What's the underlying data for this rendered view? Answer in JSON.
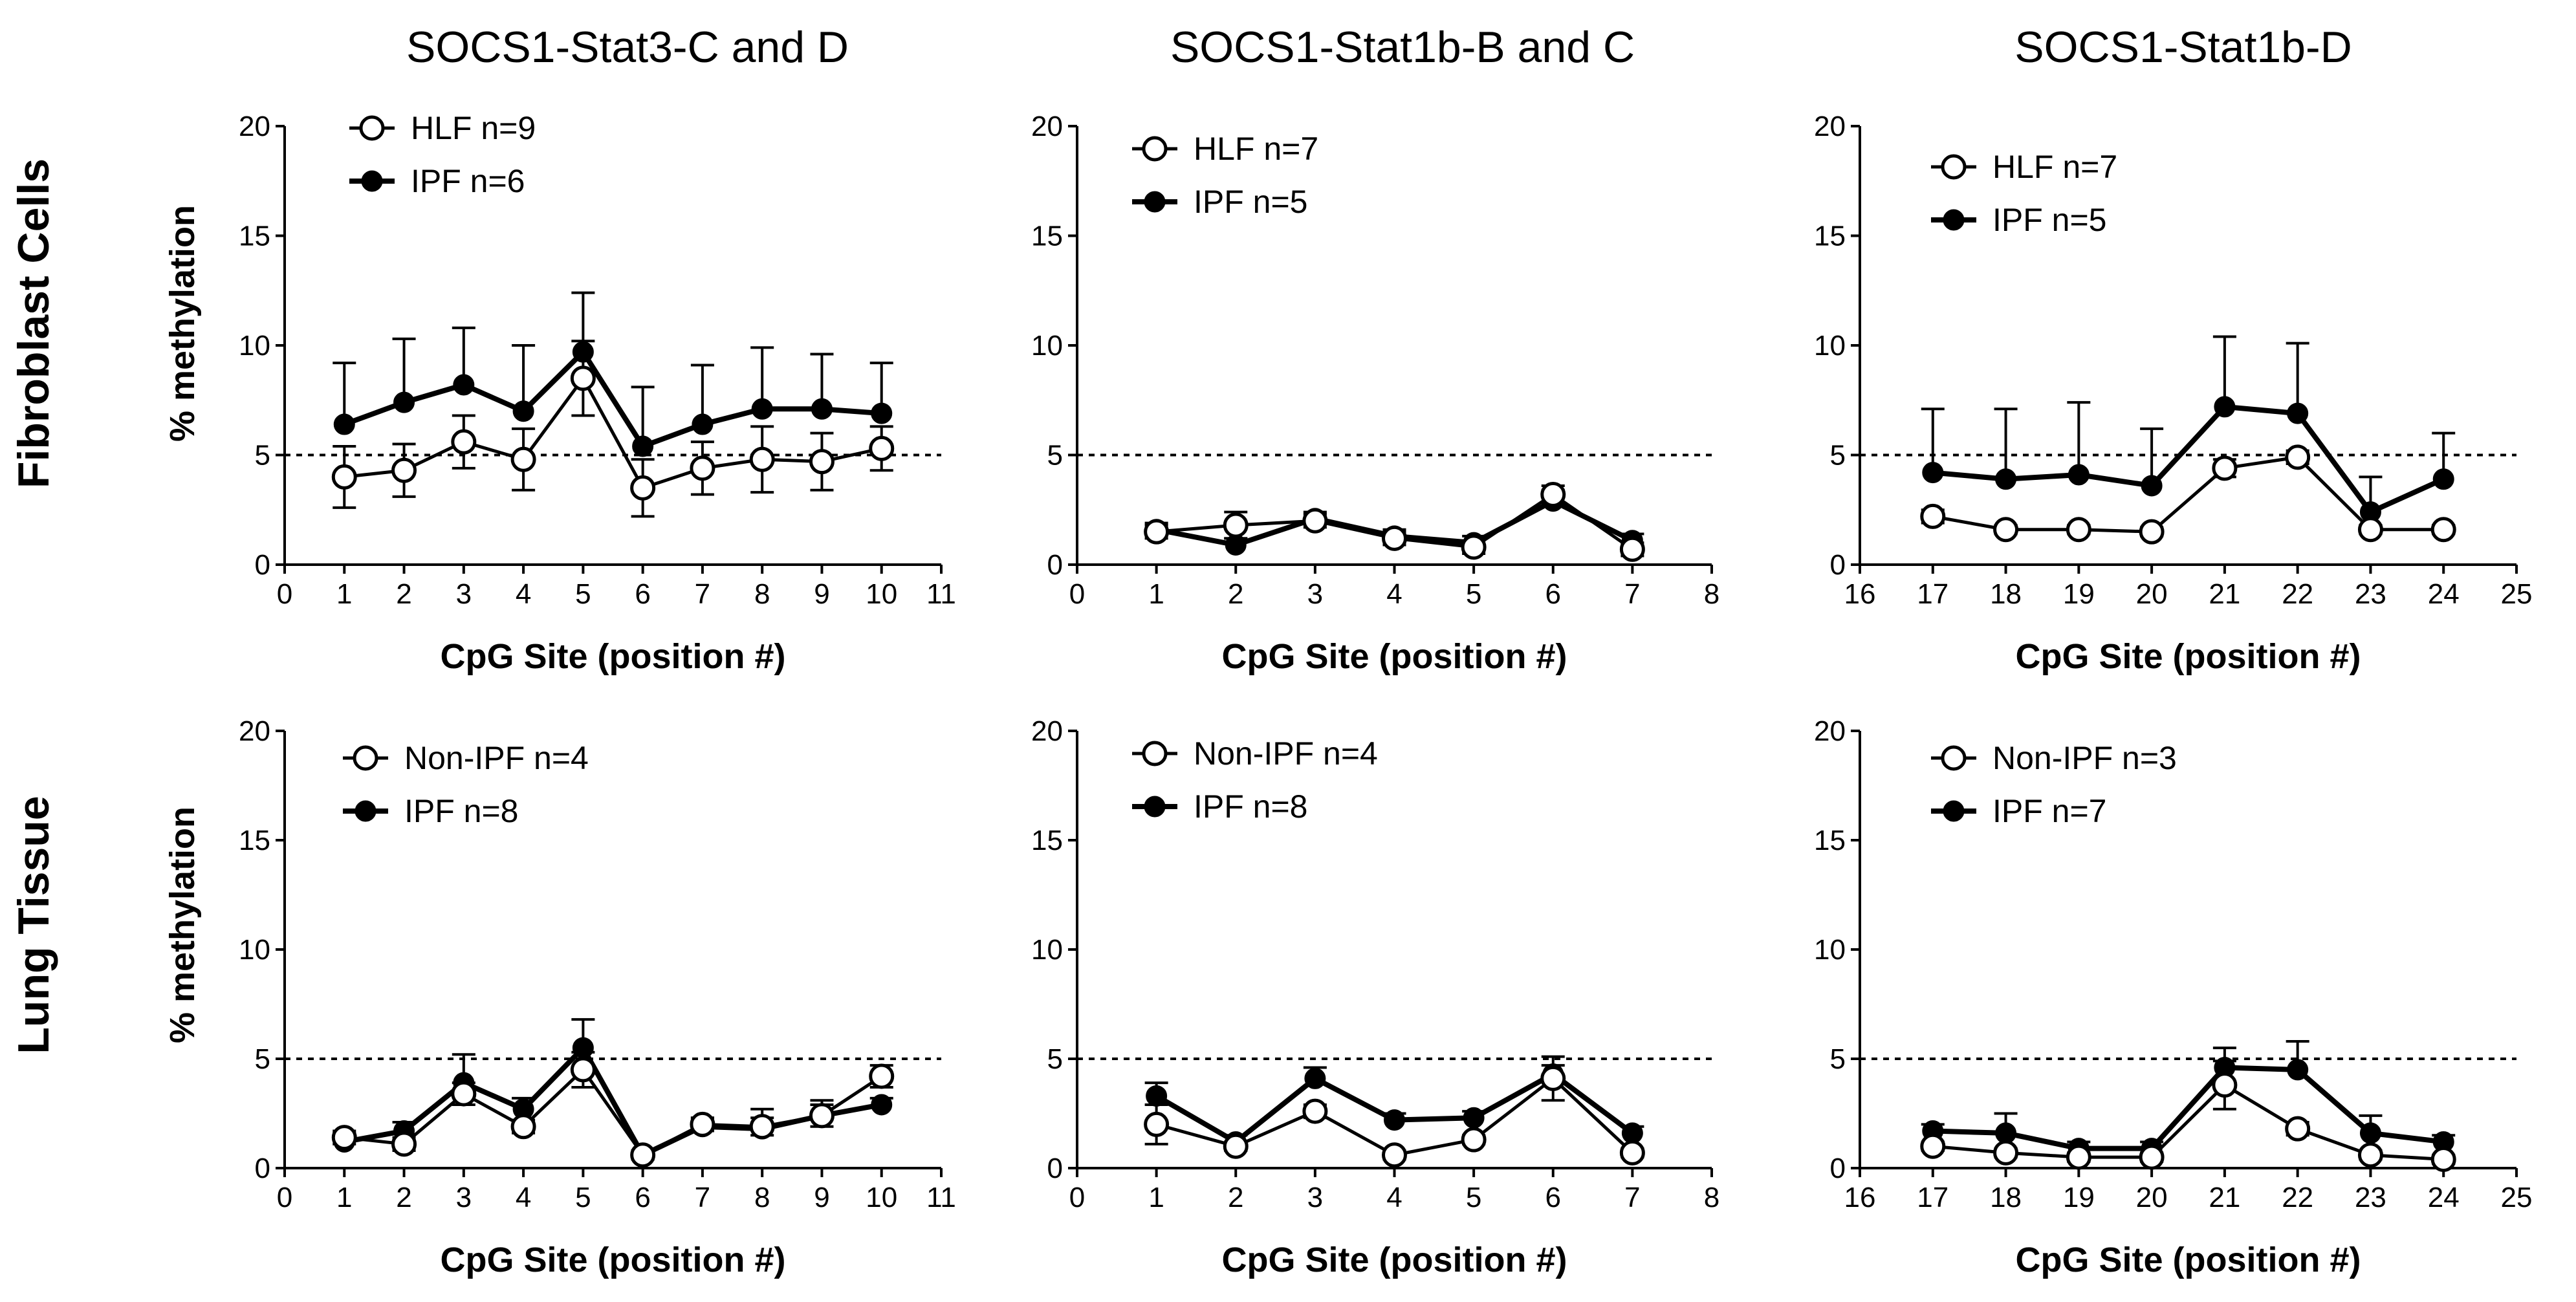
{
  "figure": {
    "column_titles": [
      "SOCS1-Stat3-C and D",
      "SOCS1-Stat1b-B and C",
      "SOCS1-Stat1b-D"
    ],
    "row_titles": [
      "Fibroblast Cells",
      "Lung Tissue"
    ],
    "ylabel": "% methylation",
    "xlabel": "CpG Site (position #)"
  },
  "chart_data": [
    {
      "id": "fib-stat3",
      "type": "line",
      "title": "SOCS1-Stat3-C and D",
      "xlabel": "CpG Site (position #)",
      "ylabel": "% methylation",
      "xlim": [
        0,
        11
      ],
      "ylim": [
        0,
        20
      ],
      "xticks": [
        0,
        1,
        2,
        3,
        4,
        5,
        6,
        7,
        8,
        9,
        10,
        11
      ],
      "yticks": [
        0,
        5,
        10,
        15,
        20
      ],
      "threshold": 5,
      "x": [
        1,
        2,
        3,
        4,
        5,
        6,
        7,
        8,
        9,
        10
      ],
      "series": [
        {
          "name": "HLF n=9",
          "marker": "open",
          "values": [
            4.0,
            4.3,
            5.6,
            4.8,
            8.5,
            3.5,
            4.4,
            4.8,
            4.7,
            5.3
          ],
          "error": [
            1.4,
            1.2,
            1.2,
            1.4,
            1.7,
            1.3,
            1.2,
            1.5,
            1.3,
            1.0
          ]
        },
        {
          "name": "IPF n=6",
          "marker": "filled",
          "values": [
            6.4,
            7.4,
            8.2,
            7.0,
            9.7,
            5.4,
            6.4,
            7.1,
            7.1,
            6.9
          ],
          "error": [
            2.8,
            2.9,
            2.6,
            3.0,
            2.7,
            2.7,
            2.7,
            2.8,
            2.5,
            2.3
          ]
        }
      ]
    },
    {
      "id": "fib-stat1bc",
      "type": "line",
      "title": "SOCS1-Stat1b-B and C",
      "xlabel": "CpG Site (position #)",
      "ylabel": "% methylation",
      "xlim": [
        0,
        8
      ],
      "ylim": [
        0,
        20
      ],
      "xticks": [
        0,
        1,
        2,
        3,
        4,
        5,
        6,
        7,
        8
      ],
      "yticks": [
        0,
        5,
        10,
        15,
        20
      ],
      "threshold": 5,
      "x": [
        1,
        2,
        3,
        4,
        5,
        6,
        7
      ],
      "series": [
        {
          "name": "HLF n=7",
          "marker": "open",
          "values": [
            1.5,
            1.8,
            2.0,
            1.2,
            0.8,
            3.2,
            0.7
          ],
          "error": [
            0.3,
            0.6,
            0.3,
            0.3,
            0.3,
            0.4,
            0.3
          ]
        },
        {
          "name": "IPF n=5",
          "marker": "filled",
          "values": [
            1.6,
            0.9,
            2.1,
            1.3,
            1.0,
            2.9,
            1.1
          ],
          "error": [
            0.3,
            0.3,
            0.3,
            0.3,
            0.3,
            0.5,
            0.3
          ]
        }
      ]
    },
    {
      "id": "fib-stat1d",
      "type": "line",
      "title": "SOCS1-Stat1b-D",
      "xlabel": "CpG Site (position #)",
      "ylabel": "% methylation",
      "xlim": [
        16,
        25
      ],
      "ylim": [
        0,
        20
      ],
      "xticks": [
        16,
        17,
        18,
        19,
        20,
        21,
        22,
        23,
        24,
        25
      ],
      "yticks": [
        0,
        5,
        10,
        15,
        20
      ],
      "threshold": 5,
      "x": [
        17,
        18,
        19,
        20,
        21,
        22,
        23,
        24
      ],
      "series": [
        {
          "name": "HLF n=7",
          "marker": "open",
          "values": [
            2.2,
            1.6,
            1.6,
            1.5,
            4.4,
            4.9,
            1.6,
            1.6
          ],
          "error": [
            0.3,
            0.2,
            0.2,
            0.2,
            0.4,
            0.3,
            0.2,
            0.2
          ]
        },
        {
          "name": "IPF n=5",
          "marker": "filled",
          "values": [
            4.2,
            3.9,
            4.1,
            3.6,
            7.2,
            6.9,
            2.4,
            3.9
          ],
          "error": [
            2.9,
            3.2,
            3.3,
            2.6,
            3.2,
            3.2,
            1.6,
            2.1
          ]
        }
      ]
    },
    {
      "id": "lung-stat3",
      "type": "line",
      "title": "SOCS1-Stat3-C and D",
      "xlabel": "CpG Site (position #)",
      "ylabel": "% methylation",
      "xlim": [
        0,
        11
      ],
      "ylim": [
        0,
        20
      ],
      "xticks": [
        0,
        1,
        2,
        3,
        4,
        5,
        6,
        7,
        8,
        9,
        10,
        11
      ],
      "yticks": [
        0,
        5,
        10,
        15,
        20
      ],
      "threshold": 5,
      "x": [
        1,
        2,
        3,
        4,
        5,
        6,
        7,
        8,
        9,
        10
      ],
      "series": [
        {
          "name": "Non-IPF n=4",
          "marker": "open",
          "values": [
            1.4,
            1.1,
            3.4,
            1.9,
            4.5,
            0.6,
            2.0,
            1.9,
            2.4,
            4.2
          ],
          "error": [
            0.3,
            0.3,
            0.5,
            0.3,
            0.8,
            0.2,
            0.3,
            0.4,
            0.5,
            0.5
          ]
        },
        {
          "name": "IPF n=8",
          "marker": "filled",
          "values": [
            1.2,
            1.7,
            3.9,
            2.7,
            5.5,
            0.6,
            1.9,
            1.8,
            2.4,
            2.9
          ],
          "error": [
            0.4,
            0.4,
            1.3,
            0.5,
            1.3,
            0.2,
            0.4,
            0.9,
            0.7,
            0.3
          ]
        }
      ]
    },
    {
      "id": "lung-stat1bc",
      "type": "line",
      "title": "SOCS1-Stat1b-B and C",
      "xlabel": "CpG Site (position #)",
      "ylabel": "% methylation",
      "xlim": [
        0,
        8
      ],
      "ylim": [
        0,
        20
      ],
      "xticks": [
        0,
        1,
        2,
        3,
        4,
        5,
        6,
        7,
        8
      ],
      "yticks": [
        0,
        5,
        10,
        15,
        20
      ],
      "threshold": 5,
      "x": [
        1,
        2,
        3,
        4,
        5,
        6,
        7
      ],
      "series": [
        {
          "name": "Non-IPF n=4",
          "marker": "open",
          "values": [
            2.0,
            1.0,
            2.6,
            0.6,
            1.3,
            4.1,
            0.7
          ],
          "error": [
            0.9,
            0.2,
            0.3,
            0.2,
            0.2,
            1.0,
            0.2
          ]
        },
        {
          "name": "IPF n=8",
          "marker": "filled",
          "values": [
            3.3,
            1.2,
            4.1,
            2.2,
            2.3,
            4.3,
            1.6
          ],
          "error": [
            0.6,
            0.3,
            0.5,
            0.3,
            0.3,
            0.4,
            0.3
          ]
        }
      ]
    },
    {
      "id": "lung-stat1d",
      "type": "line",
      "title": "SOCS1-Stat1b-D",
      "xlabel": "CpG Site (position #)",
      "ylabel": "% methylation",
      "xlim": [
        16,
        25
      ],
      "ylim": [
        0,
        20
      ],
      "xticks": [
        16,
        17,
        18,
        19,
        20,
        21,
        22,
        23,
        24,
        25
      ],
      "yticks": [
        0,
        5,
        10,
        15,
        20
      ],
      "threshold": 5,
      "x": [
        17,
        18,
        19,
        20,
        21,
        22,
        23,
        24
      ],
      "series": [
        {
          "name": "Non-IPF n=3",
          "marker": "open",
          "values": [
            1.0,
            0.7,
            0.5,
            0.5,
            3.8,
            1.8,
            0.6,
            0.4
          ],
          "error": [
            0.2,
            0.2,
            0.2,
            0.2,
            1.1,
            0.3,
            0.2,
            0.2
          ]
        },
        {
          "name": "IPF n=7",
          "marker": "filled",
          "values": [
            1.7,
            1.6,
            0.9,
            0.9,
            4.6,
            4.5,
            1.6,
            1.2
          ],
          "error": [
            0.3,
            0.9,
            0.3,
            0.3,
            0.9,
            1.3,
            0.8,
            0.3
          ]
        }
      ]
    }
  ]
}
